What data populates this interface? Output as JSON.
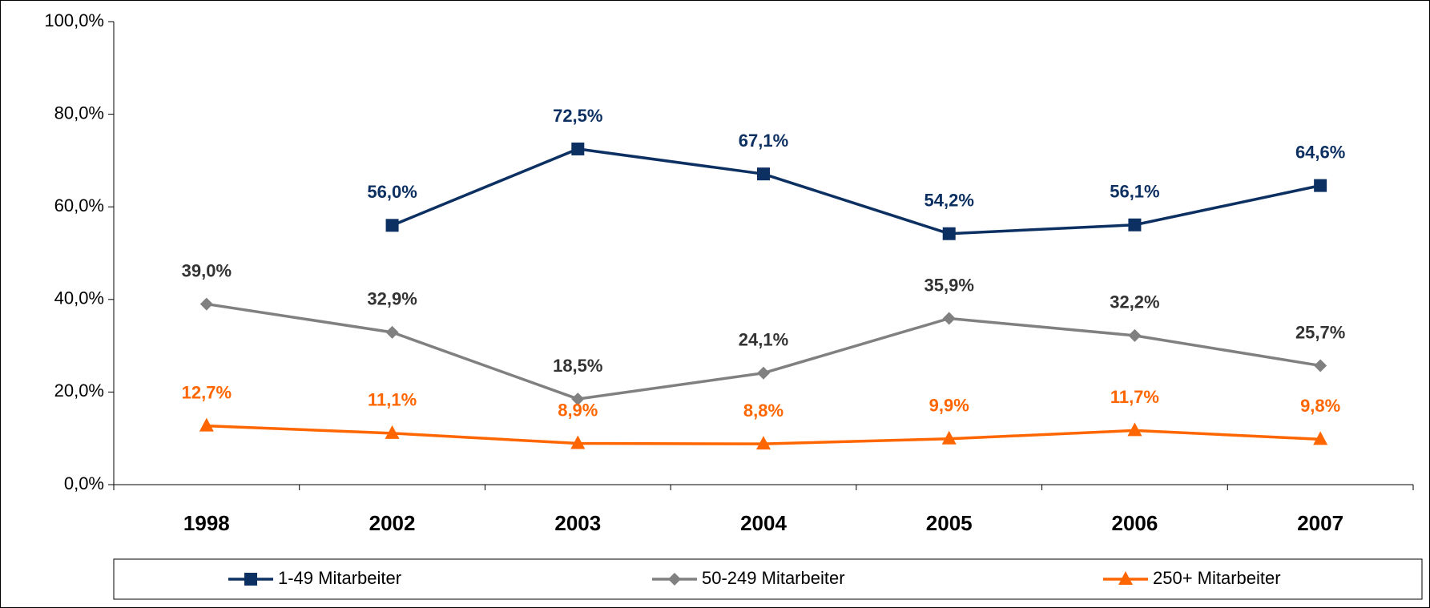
{
  "chart_data": {
    "type": "line",
    "categories": [
      "1998",
      "2002",
      "2003",
      "2004",
      "2005",
      "2006",
      "2007"
    ],
    "series": [
      {
        "name": "1-49 Mitarbeiter",
        "color": "#0d3062",
        "label_color": "#0d3062",
        "marker": "square",
        "values": [
          null,
          56.0,
          72.5,
          67.1,
          54.2,
          56.1,
          64.6
        ],
        "value_labels": [
          null,
          "56,0%",
          "72,5%",
          "67,1%",
          "54,2%",
          "56,1%",
          "64,6%"
        ]
      },
      {
        "name": "50-249 Mitarbeiter",
        "color": "#808080",
        "label_color": "#333333",
        "marker": "diamond",
        "values": [
          39.0,
          32.9,
          18.5,
          24.1,
          35.9,
          32.2,
          25.7
        ],
        "value_labels": [
          "39,0%",
          "32,9%",
          "18,5%",
          "24,1%",
          "35,9%",
          "32,2%",
          "25,7%"
        ]
      },
      {
        "name": "250+ Mitarbeiter",
        "color": "#ff6600",
        "label_color": "#ff6600",
        "marker": "triangle",
        "values": [
          12.7,
          11.1,
          8.9,
          8.8,
          9.9,
          11.7,
          9.8
        ],
        "value_labels": [
          "12,7%",
          "11,1%",
          "8,9%",
          "8,8%",
          "9,9%",
          "11,7%",
          "9,8%"
        ]
      }
    ],
    "ylim": [
      0,
      100
    ],
    "yticks": [
      {
        "value": 0,
        "label": "0,0%"
      },
      {
        "value": 20,
        "label": "20,0%"
      },
      {
        "value": 40,
        "label": "40,0%"
      },
      {
        "value": 60,
        "label": "60,0%"
      },
      {
        "value": 80,
        "label": "80,0%"
      },
      {
        "value": 100,
        "label": "100,0%"
      }
    ],
    "grid": false,
    "legend": "bottom"
  }
}
